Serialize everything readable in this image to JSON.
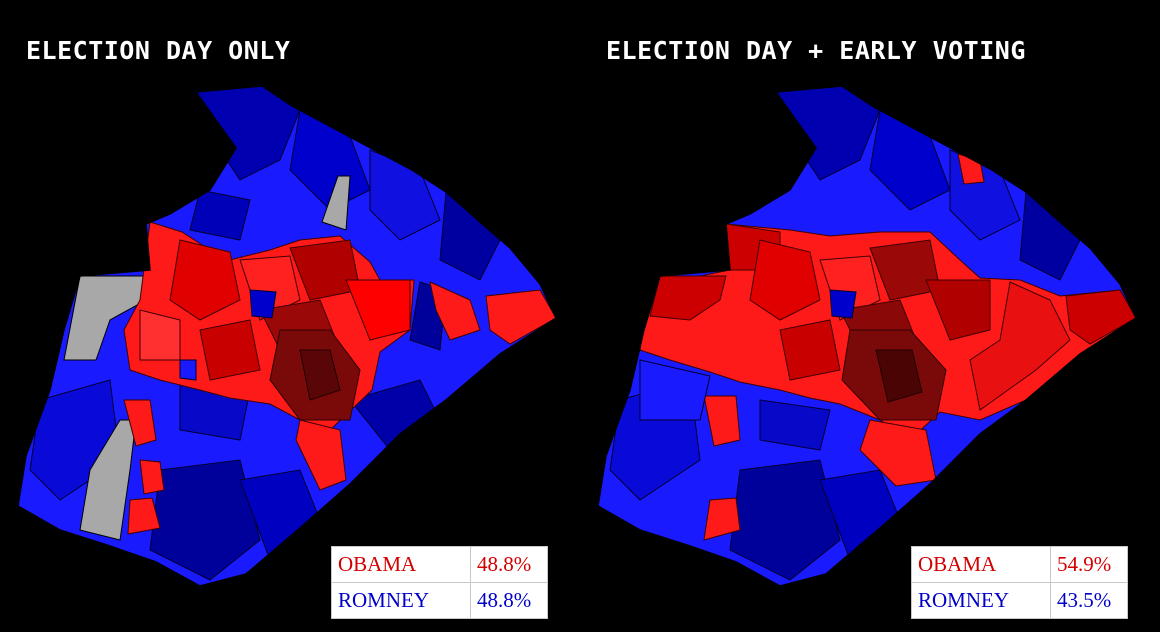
{
  "colors": {
    "background": "#000000",
    "obama_light": "#ff1a1a",
    "obama_mid": "#d40000",
    "obama_dark": "#7a0a0a",
    "romney_light": "#1a1aff",
    "romney_mid": "#0000cd",
    "romney_dark": "#00008b",
    "no_data": "#a8a8a8",
    "obama_text": "#d40000",
    "romney_text": "#0000c8"
  },
  "maps": [
    {
      "title": "ELECTION DAY ONLY",
      "results": [
        {
          "candidate": "OBAMA",
          "percent": "48.8%"
        },
        {
          "candidate": "ROMNEY",
          "percent": "48.8%"
        }
      ],
      "has_no_data_precincts": true
    },
    {
      "title": "ELECTION DAY + EARLY VOTING",
      "results": [
        {
          "candidate": "OBAMA",
          "percent": "54.9%"
        },
        {
          "candidate": "ROMNEY",
          "percent": "43.5%"
        }
      ],
      "has_no_data_precincts": false
    }
  ]
}
